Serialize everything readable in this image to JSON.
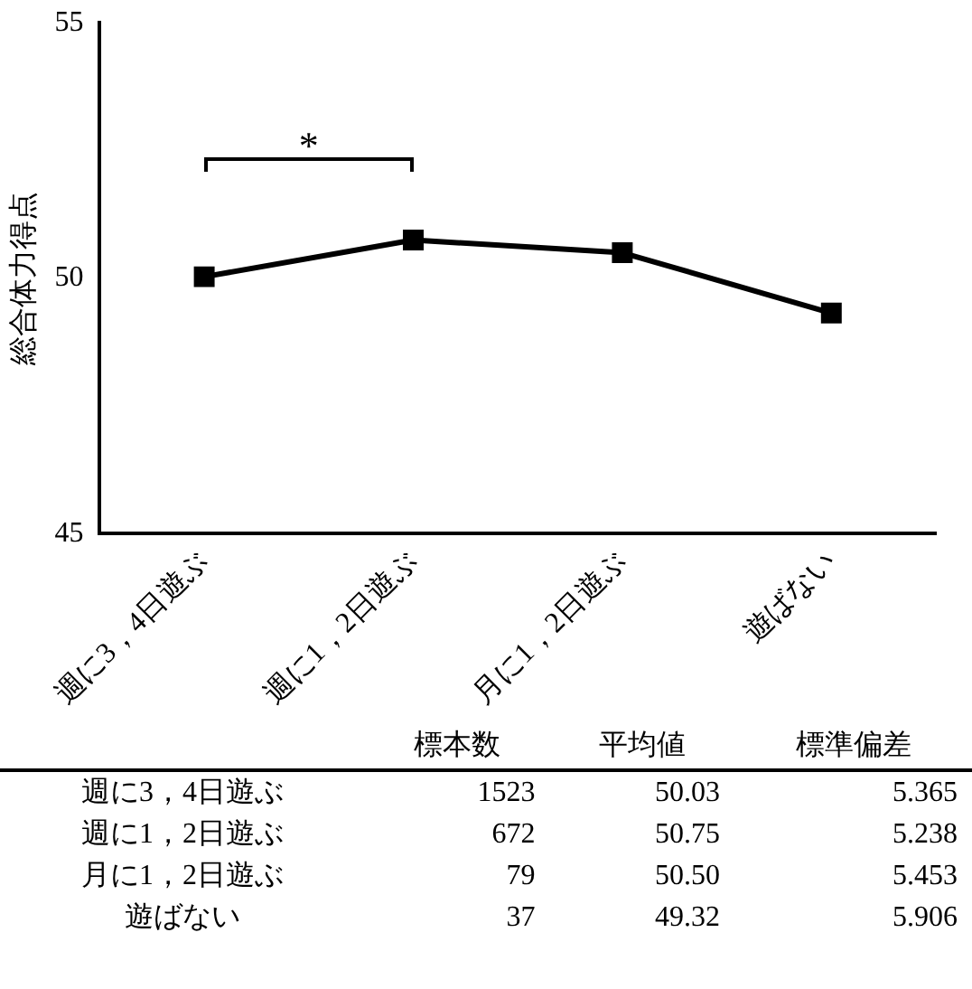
{
  "chart_data": [
    {
      "type": "line",
      "categories": [
        "週に3，4日遊ぶ",
        "週に1，2日遊ぶ",
        "月に1，2日遊ぶ",
        "遊ばない"
      ],
      "values": [
        50.03,
        50.75,
        50.5,
        49.32
      ],
      "color": "#000000",
      "marker": "square",
      "ylabel": "総合体力得点",
      "ylim": [
        45,
        55
      ],
      "yticks": [
        45,
        50,
        55
      ],
      "grid": false,
      "legend": false,
      "annotations": [
        "*"
      ]
    },
    {
      "type": "other",
      "categories": [
        "週に3，4日遊ぶ",
        "週に1，2日遊ぶ",
        "月に1，2日遊ぶ",
        "遊ばない"
      ],
      "data_labels": true,
      "series": [
        {
          "name": "標本数",
          "values": [
            1523,
            672,
            79,
            37
          ],
          "value_labels": [
            "1523",
            "672",
            "79",
            "37"
          ]
        },
        {
          "name": "平均値",
          "values": [
            50.03,
            50.75,
            50.5,
            49.32
          ],
          "value_labels": [
            "50.03",
            "50.75",
            "50.50",
            "49.32"
          ]
        },
        {
          "name": "標準偏差",
          "values": [
            5.365,
            5.238,
            5.453,
            5.906
          ],
          "value_labels": [
            "5.365",
            "5.238",
            "5.453",
            "5.906"
          ]
        }
      ]
    }
  ]
}
